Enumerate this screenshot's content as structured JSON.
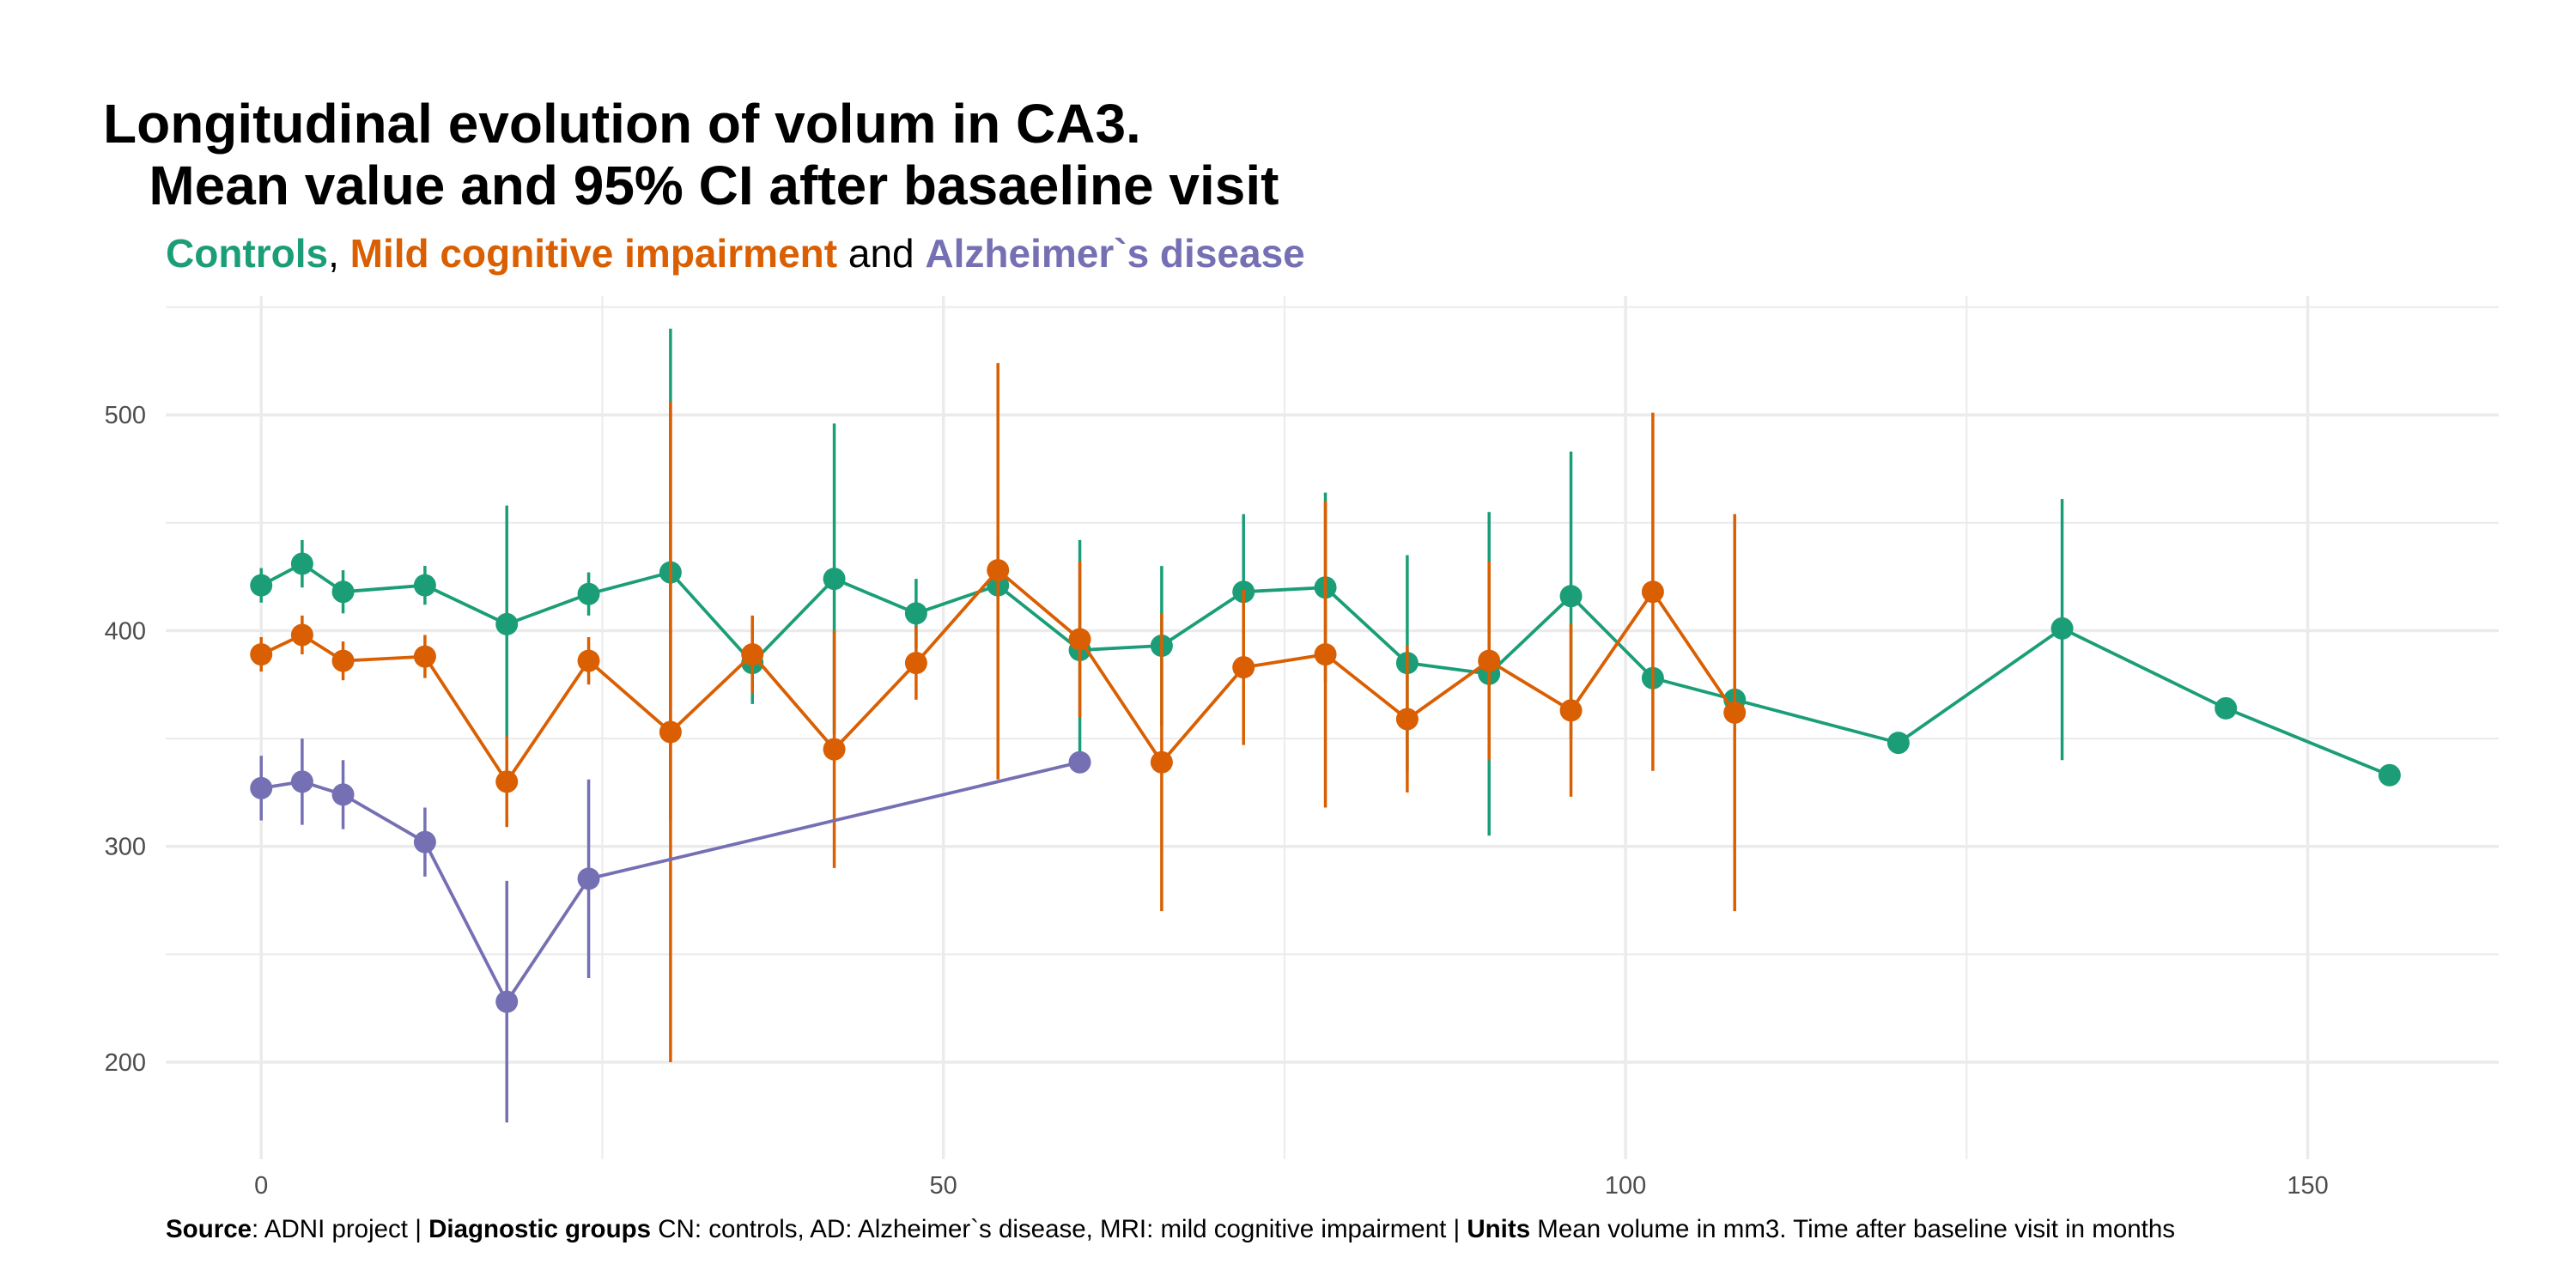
{
  "title": "Longitudinal evolution of volum in CA3.\n   Mean value and 95% CI after basaeline visit",
  "subtitle": {
    "cn_label": "Controls",
    "sep1": ", ",
    "mci_label": "Mild cognitive impairment",
    "sep2": " and ",
    "ad_label": "Alzheimer`s disease"
  },
  "caption": {
    "source_label": "Source",
    "source_text": ": ADNI project | ",
    "groups_label": "Diagnostic groups",
    "groups_text": " CN: controls, AD: Alzheimer`s disease, MRI: mild cognitive impairment | ",
    "units_label": "Units",
    "units_text": " Mean volume in mm3. Time after baseline visit in months"
  },
  "colors": {
    "cn": "#1b9e77",
    "mci": "#d95f02",
    "ad": "#7570b3",
    "grid": "#ebebeb",
    "axis_text": "#4d4d4d"
  },
  "chart_data": {
    "type": "line",
    "xlabel": "",
    "ylabel": "",
    "xlim": [
      -7,
      164
    ],
    "ylim": [
      155,
      555
    ],
    "x_ticks": [
      0,
      50,
      100,
      150
    ],
    "y_ticks": [
      200,
      300,
      400,
      500
    ],
    "grid": true,
    "legend": "none",
    "error_bars": "95% CI",
    "series": [
      {
        "key": "cn",
        "name": "Controls",
        "points": [
          {
            "x": 0,
            "y": 421,
            "lo": 413,
            "hi": 429
          },
          {
            "x": 3,
            "y": 431,
            "lo": 420,
            "hi": 442
          },
          {
            "x": 6,
            "y": 418,
            "lo": 408,
            "hi": 428
          },
          {
            "x": 12,
            "y": 421,
            "lo": 412,
            "hi": 430
          },
          {
            "x": 18,
            "y": 403,
            "lo": 350,
            "hi": 458
          },
          {
            "x": 24,
            "y": 417,
            "lo": 407,
            "hi": 427
          },
          {
            "x": 30,
            "y": 427,
            "lo": 312,
            "hi": 540
          },
          {
            "x": 36,
            "y": 385,
            "lo": 366,
            "hi": 405
          },
          {
            "x": 42,
            "y": 424,
            "lo": 352,
            "hi": 496
          },
          {
            "x": 48,
            "y": 408,
            "lo": 392,
            "hi": 424
          },
          {
            "x": 54,
            "y": 421,
            "lo": 398,
            "hi": 444
          },
          {
            "x": 60,
            "y": 391,
            "lo": 340,
            "hi": 442
          },
          {
            "x": 66,
            "y": 393,
            "lo": 356,
            "hi": 430
          },
          {
            "x": 72,
            "y": 418,
            "lo": 382,
            "hi": 454
          },
          {
            "x": 78,
            "y": 420,
            "lo": 376,
            "hi": 464
          },
          {
            "x": 84,
            "y": 385,
            "lo": 335,
            "hi": 435
          },
          {
            "x": 90,
            "y": 380,
            "lo": 305,
            "hi": 455
          },
          {
            "x": 96,
            "y": 416,
            "lo": 350,
            "hi": 483
          },
          {
            "x": 102,
            "y": 378,
            "lo": null,
            "hi": null
          },
          {
            "x": 108,
            "y": 368,
            "lo": null,
            "hi": null
          },
          {
            "x": 120,
            "y": 348,
            "lo": null,
            "hi": null
          },
          {
            "x": 132,
            "y": 401,
            "lo": 340,
            "hi": 461
          },
          {
            "x": 144,
            "y": 364,
            "lo": null,
            "hi": null
          },
          {
            "x": 156,
            "y": 333,
            "lo": null,
            "hi": null
          }
        ]
      },
      {
        "key": "mci",
        "name": "Mild cognitive impairment",
        "points": [
          {
            "x": 0,
            "y": 389,
            "lo": 381,
            "hi": 397
          },
          {
            "x": 3,
            "y": 398,
            "lo": 389,
            "hi": 407
          },
          {
            "x": 6,
            "y": 386,
            "lo": 377,
            "hi": 395
          },
          {
            "x": 12,
            "y": 388,
            "lo": 378,
            "hi": 398
          },
          {
            "x": 18,
            "y": 330,
            "lo": 309,
            "hi": 351
          },
          {
            "x": 24,
            "y": 386,
            "lo": 375,
            "hi": 397
          },
          {
            "x": 30,
            "y": 353,
            "lo": 200,
            "hi": 506
          },
          {
            "x": 36,
            "y": 389,
            "lo": 371,
            "hi": 407
          },
          {
            "x": 42,
            "y": 345,
            "lo": 290,
            "hi": 400
          },
          {
            "x": 48,
            "y": 385,
            "lo": 368,
            "hi": 402
          },
          {
            "x": 54,
            "y": 428,
            "lo": 331,
            "hi": 524
          },
          {
            "x": 60,
            "y": 396,
            "lo": 360,
            "hi": 432
          },
          {
            "x": 66,
            "y": 339,
            "lo": 270,
            "hi": 408
          },
          {
            "x": 72,
            "y": 383,
            "lo": 347,
            "hi": 419
          },
          {
            "x": 78,
            "y": 389,
            "lo": 318,
            "hi": 460
          },
          {
            "x": 84,
            "y": 359,
            "lo": 325,
            "hi": 393
          },
          {
            "x": 90,
            "y": 386,
            "lo": 340,
            "hi": 432
          },
          {
            "x": 96,
            "y": 363,
            "lo": 323,
            "hi": 403
          },
          {
            "x": 102,
            "y": 418,
            "lo": 335,
            "hi": 501
          },
          {
            "x": 108,
            "y": 362,
            "lo": 270,
            "hi": 454
          }
        ]
      },
      {
        "key": "ad",
        "name": "Alzheimer`s disease",
        "points": [
          {
            "x": 0,
            "y": 327,
            "lo": 312,
            "hi": 342
          },
          {
            "x": 3,
            "y": 330,
            "lo": 310,
            "hi": 350
          },
          {
            "x": 6,
            "y": 324,
            "lo": 308,
            "hi": 340
          },
          {
            "x": 12,
            "y": 302,
            "lo": 286,
            "hi": 318
          },
          {
            "x": 18,
            "y": 228,
            "lo": 172,
            "hi": 284
          },
          {
            "x": 24,
            "y": 285,
            "lo": 239,
            "hi": 331
          },
          {
            "x": 60,
            "y": 339,
            "lo": null,
            "hi": null
          }
        ]
      }
    ]
  }
}
